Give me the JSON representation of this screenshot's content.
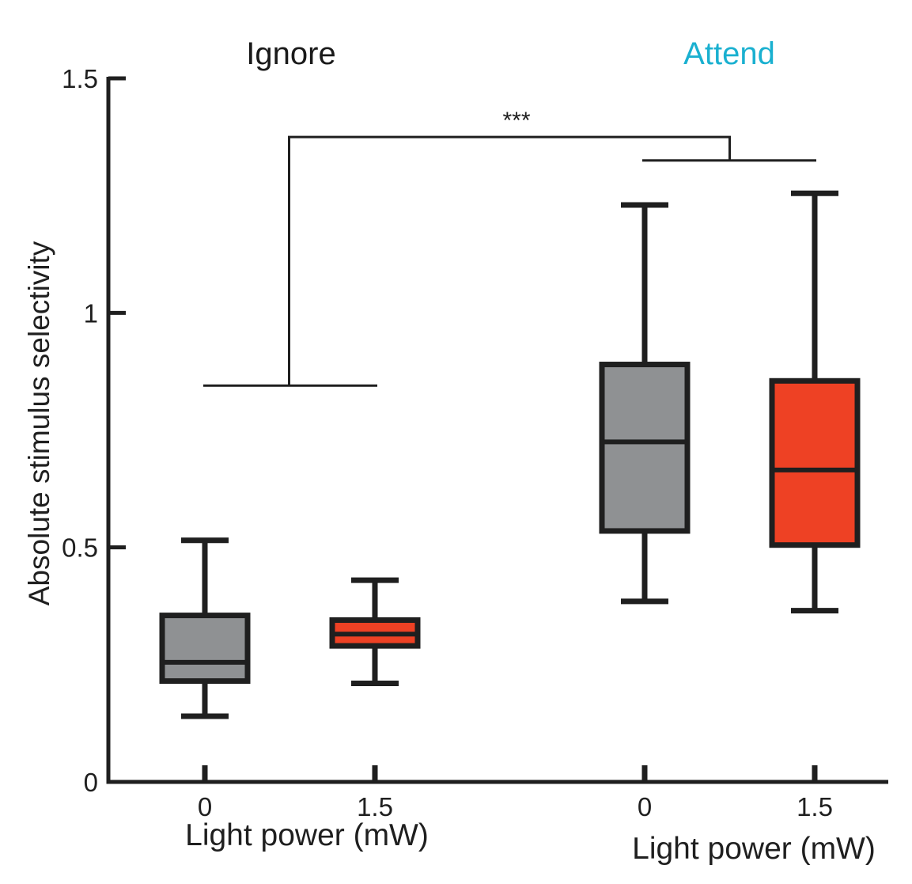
{
  "chart_data": {
    "type": "box",
    "ylabel": "Absolute stimulus selectivity",
    "ylim": [
      0,
      1.5
    ],
    "yticks": [
      {
        "value": 0,
        "label": "0"
      },
      {
        "value": 0.5,
        "label": "0.5"
      },
      {
        "value": 1,
        "label": "1"
      },
      {
        "value": 1.5,
        "label": "1.5"
      }
    ],
    "groups": [
      {
        "label": "Ignore",
        "label_color": "#1a1a1a",
        "xlabel": "Light power (mW)",
        "boxes": [
          {
            "x_label": "0",
            "color": "#8f9193",
            "whisker_low": 0.14,
            "q1": 0.215,
            "median": 0.255,
            "q3": 0.355,
            "whisker_high": 0.515
          },
          {
            "x_label": "1.5",
            "color": "#ee4124",
            "whisker_low": 0.21,
            "q1": 0.29,
            "median": 0.315,
            "q3": 0.345,
            "whisker_high": 0.43
          }
        ]
      },
      {
        "label": "Attend",
        "label_color": "#1ab0d0",
        "xlabel": "Light power (mW)",
        "boxes": [
          {
            "x_label": "0",
            "color": "#8f9193",
            "whisker_low": 0.385,
            "q1": 0.535,
            "median": 0.725,
            "q3": 0.89,
            "whisker_high": 1.23
          },
          {
            "x_label": "1.5",
            "color": "#ee4124",
            "whisker_low": 0.365,
            "q1": 0.505,
            "median": 0.665,
            "q3": 0.855,
            "whisker_high": 1.255
          }
        ]
      }
    ],
    "significance": {
      "label": "***",
      "left_bracket_y": 0.845,
      "right_bracket_y": 1.325,
      "top_y": 1.375
    },
    "grid": false,
    "legend": "none"
  }
}
